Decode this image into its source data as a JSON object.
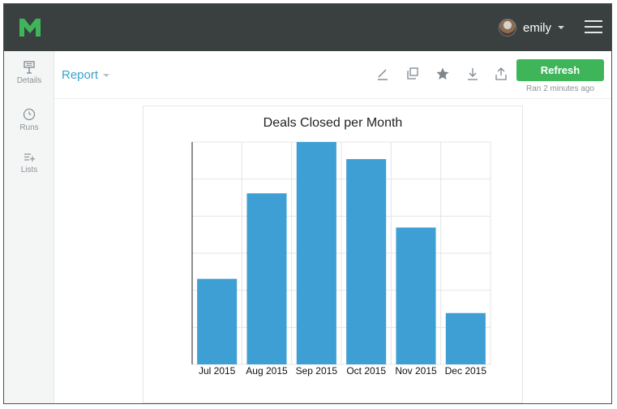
{
  "header": {
    "user_name": "emily"
  },
  "sidebar": {
    "items": [
      {
        "label": "Details",
        "icon": "details-icon"
      },
      {
        "label": "Runs",
        "icon": "clock-icon"
      },
      {
        "label": "Lists",
        "icon": "add-list-icon"
      }
    ]
  },
  "toolbar": {
    "report_label": "Report",
    "refresh_label": "Refresh",
    "ran_text": "Ran 2 minutes ago",
    "icons": [
      "edit-icon",
      "duplicate-icon",
      "star-icon",
      "download-icon",
      "share-icon"
    ]
  },
  "colors": {
    "topbar": "#3a3f40",
    "brand_green": "#3fb55a",
    "bar": "#3d9fd3",
    "report_link": "#3aa3c8"
  },
  "chart_data": {
    "type": "bar",
    "title": "Deals Closed per Month",
    "categories": [
      "Jul 2015",
      "Aug 2015",
      "Sep 2015",
      "Oct 2015",
      "Nov 2015",
      "Dec 2015"
    ],
    "values": [
      5,
      10,
      13,
      12,
      8,
      3
    ],
    "ylim": [
      0,
      13
    ],
    "grid": true,
    "y_tick_labels_shown": false
  }
}
